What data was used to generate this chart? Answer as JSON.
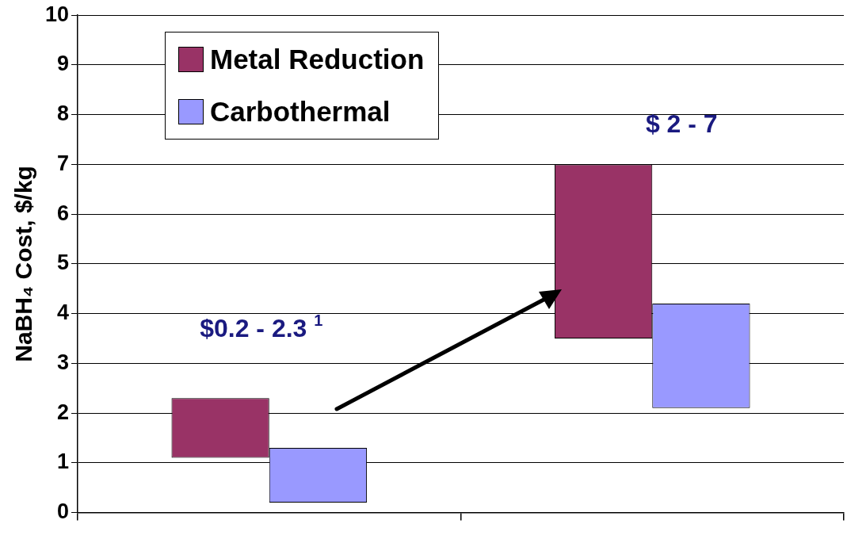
{
  "chart_data": {
    "type": "bar",
    "ylabel": "NaBH₄ Cost, $/kg",
    "categories": [
      null,
      null
    ],
    "series": [
      {
        "name": "Metal Reduction",
        "color": "#993366",
        "values": [
          1.2,
          3.5
        ],
        "base": [
          1.1,
          3.5
        ]
      },
      {
        "name": "Carbothermal",
        "color": "#9999ff",
        "values": [
          1.1,
          2.1
        ],
        "base": [
          0.2,
          2.1
        ]
      }
    ],
    "ylim": [
      0,
      10
    ],
    "yticks": [
      0,
      1,
      2,
      3,
      4,
      5,
      6,
      7,
      8,
      9,
      10
    ],
    "grid": "y",
    "legend": "top left",
    "annotations": [
      "$0.2 - 2.3 $^{1}$",
      "$ 2 - 7"
    ]
  }
}
